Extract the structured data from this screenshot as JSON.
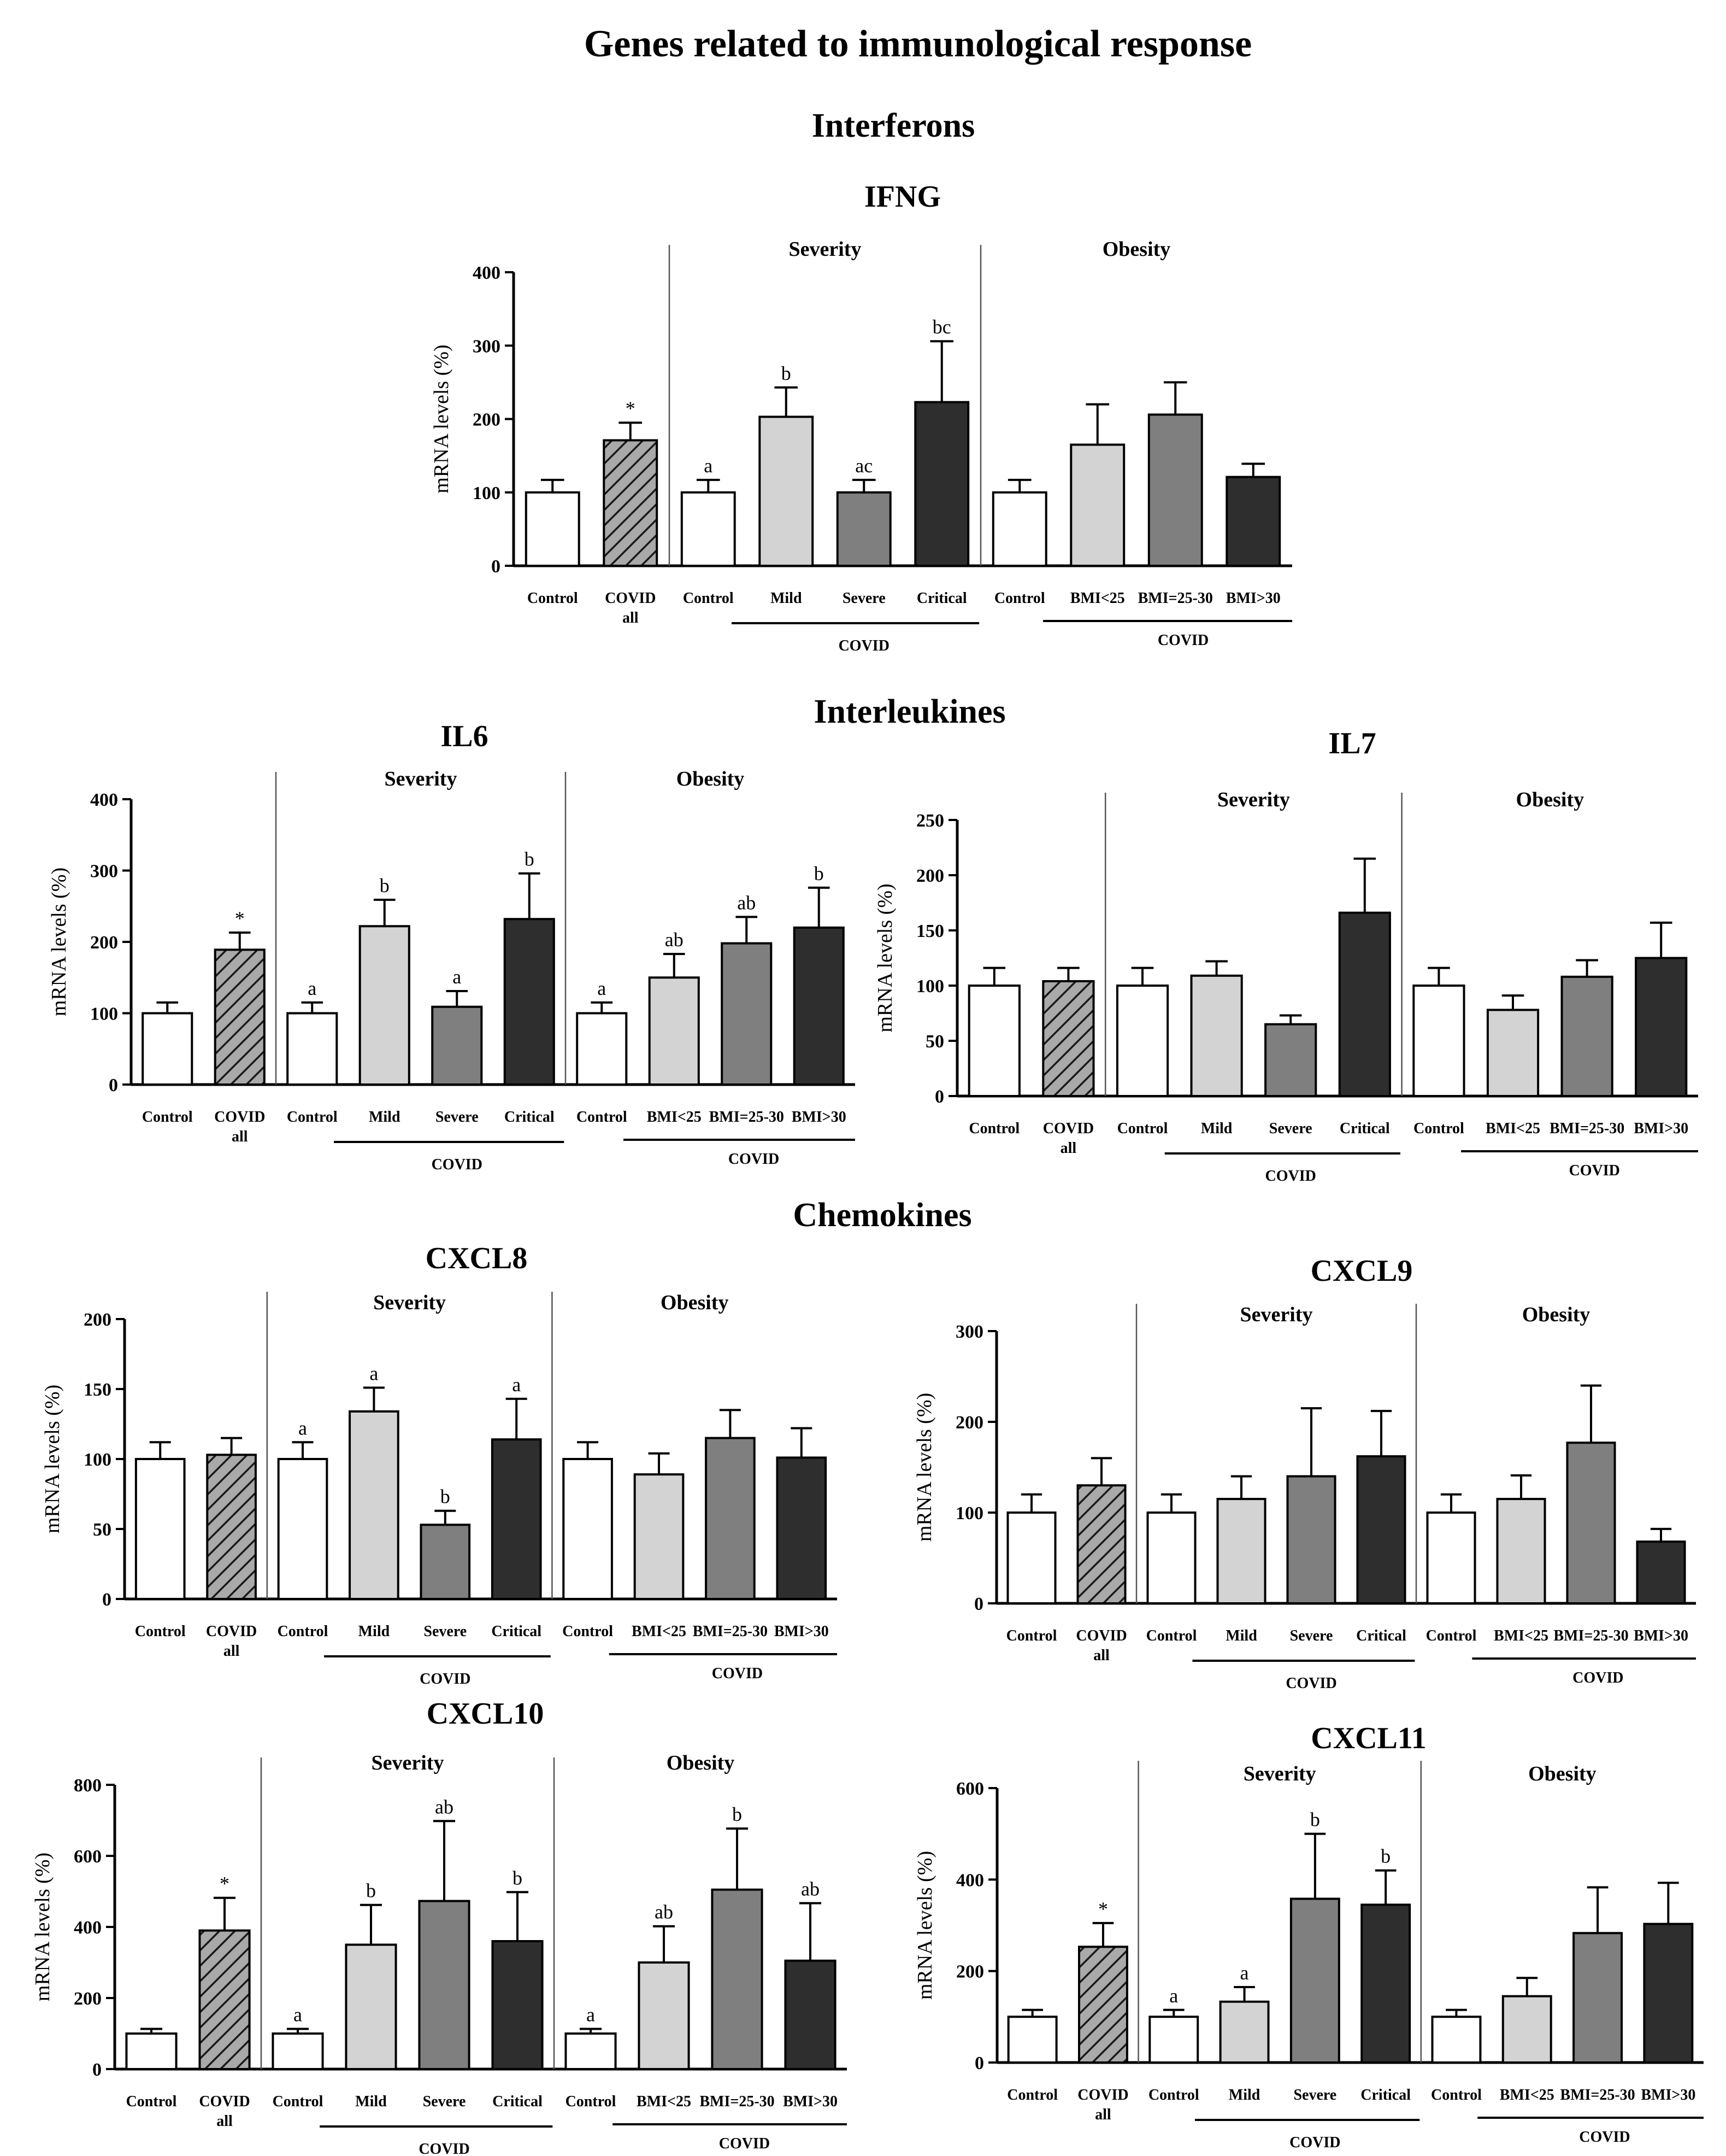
{
  "page_title": "Genes related to immunological response",
  "sections": [
    "Interferons",
    "Interleukines",
    "Chemokines"
  ],
  "ylabel": "mRNA levels (%)",
  "group_labels": {
    "severity": "Severity",
    "obesity": "Obesity",
    "covid": "COVID"
  },
  "categories": [
    [
      "Control"
    ],
    [
      "COVID",
      "all"
    ],
    [
      "Control"
    ],
    [
      "Mild"
    ],
    [
      "Severe"
    ],
    [
      "Critical"
    ],
    [
      "Control"
    ],
    [
      "BMI<25"
    ],
    [
      "BMI=25-30"
    ],
    [
      "BMI>30"
    ]
  ],
  "colors": {
    "control": "#ffffff",
    "covid_all": "#a9a9a9",
    "mild": "#d3d3d3",
    "severe": "#7f7f7f",
    "critical": "#2e2e2e",
    "bmi_lt25": "#d3d3d3",
    "bmi_25_30": "#7f7f7f",
    "bmi_gt30": "#2e2e2e"
  },
  "chart_data": [
    {
      "type": "bar",
      "title": "IFNG",
      "ylabel": "mRNA levels (%)",
      "ylim": [
        0,
        400
      ],
      "yticks": [
        0,
        100,
        200,
        300,
        400
      ],
      "values": [
        100,
        171,
        100,
        203,
        100,
        223,
        100,
        165,
        206,
        121
      ],
      "errors": [
        17,
        24,
        17,
        40,
        17,
        83,
        17,
        55,
        44,
        18
      ],
      "labels": [
        "",
        "*",
        "a",
        "b",
        "ac",
        "bc",
        "",
        "",
        "",
        ""
      ]
    },
    {
      "type": "bar",
      "title": "IL6",
      "ylabel": "mRNA levels (%)",
      "ylim": [
        0,
        400
      ],
      "yticks": [
        0,
        100,
        200,
        300,
        400
      ],
      "values": [
        100,
        189,
        100,
        222,
        109,
        232,
        100,
        150,
        198,
        220
      ],
      "errors": [
        15,
        24,
        15,
        37,
        22,
        64,
        15,
        33,
        37,
        56
      ],
      "labels": [
        "",
        "*",
        "a",
        "b",
        "a",
        "b",
        "a",
        "ab",
        "ab",
        "b"
      ]
    },
    {
      "type": "bar",
      "title": "IL7",
      "ylabel": "mRNA levels (%)",
      "ylim": [
        0,
        250
      ],
      "yticks": [
        0,
        50,
        100,
        150,
        200,
        250
      ],
      "values": [
        100,
        104,
        100,
        109,
        65,
        166,
        100,
        78,
        108,
        125
      ],
      "errors": [
        16,
        12,
        16,
        13,
        8,
        49,
        16,
        13,
        15,
        32
      ],
      "labels": [
        "",
        "",
        "",
        "",
        "",
        "",
        "",
        "",
        "",
        ""
      ]
    },
    {
      "type": "bar",
      "title": "CXCL8",
      "ylabel": "mRNA levels (%)",
      "ylim": [
        0,
        200
      ],
      "yticks": [
        0,
        50,
        100,
        150,
        200
      ],
      "values": [
        100,
        103,
        100,
        134,
        53,
        114,
        100,
        89,
        115,
        101
      ],
      "errors": [
        12,
        12,
        12,
        17,
        10,
        29,
        12,
        15,
        20,
        21
      ],
      "labels": [
        "",
        "",
        "a",
        "a",
        "b",
        "a",
        "",
        "",
        "",
        ""
      ]
    },
    {
      "type": "bar",
      "title": "CXCL9",
      "ylabel": "mRNA levels (%)",
      "ylim": [
        0,
        300
      ],
      "yticks": [
        0,
        100,
        200,
        300
      ],
      "values": [
        100,
        130,
        100,
        115,
        140,
        162,
        100,
        115,
        177,
        68
      ],
      "errors": [
        20,
        30,
        20,
        25,
        75,
        50,
        20,
        26,
        63,
        14
      ],
      "labels": [
        "",
        "",
        "",
        "",
        "",
        "",
        "",
        "",
        "",
        ""
      ]
    },
    {
      "type": "bar",
      "title": "CXCL10",
      "ylabel": "mRNA levels (%)",
      "ylim": [
        0,
        800
      ],
      "yticks": [
        0,
        200,
        400,
        600,
        800
      ],
      "values": [
        100,
        390,
        100,
        350,
        473,
        360,
        100,
        300,
        505,
        305
      ],
      "errors": [
        13,
        92,
        13,
        112,
        225,
        138,
        13,
        102,
        172,
        162
      ],
      "labels": [
        "",
        "*",
        "a",
        "b",
        "ab",
        "b",
        "a",
        "ab",
        "b",
        "ab"
      ]
    },
    {
      "type": "bar",
      "title": "CXCL11",
      "ylabel": "mRNA levels (%)",
      "ylim": [
        0,
        600
      ],
      "yticks": [
        0,
        200,
        400,
        600
      ],
      "values": [
        100,
        253,
        100,
        133,
        358,
        345,
        100,
        145,
        283,
        303
      ],
      "errors": [
        15,
        52,
        15,
        32,
        142,
        75,
        15,
        40,
        100,
        90
      ],
      "labels": [
        "",
        "*",
        "a",
        "a",
        "b",
        "b",
        "",
        "",
        "",
        ""
      ]
    }
  ]
}
